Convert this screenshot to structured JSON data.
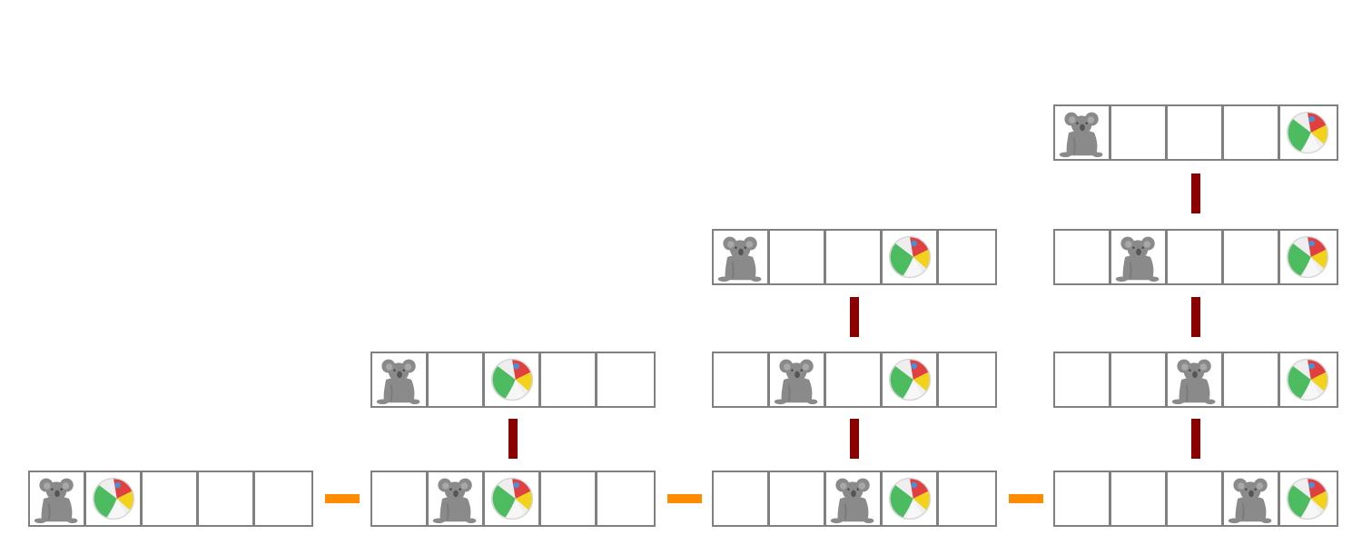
{
  "colors": {
    "cell_border": "#808080",
    "horizontal_connector": "#ff8c00",
    "vertical_connector": "#8b0000",
    "koala": "#8a8a8a",
    "ball_green": "#4dbb5f",
    "ball_red": "#e04040",
    "ball_yellow": "#f2d21b",
    "ball_blue": "#4a90d9"
  },
  "icons": {
    "koala": "koala-icon",
    "ball": "beach-ball-icon"
  },
  "diagram": {
    "cells_per_strip": 5,
    "columns": [
      {
        "rows": [
          {
            "koala": 0,
            "ball": 1
          }
        ]
      },
      {
        "rows": [
          {
            "koala": 1,
            "ball": 2
          },
          {
            "koala": 0,
            "ball": 2
          }
        ]
      },
      {
        "rows": [
          {
            "koala": 2,
            "ball": 3
          },
          {
            "koala": 1,
            "ball": 3
          },
          {
            "koala": 0,
            "ball": 3
          }
        ]
      },
      {
        "rows": [
          {
            "koala": 3,
            "ball": 4
          },
          {
            "koala": 2,
            "ball": 4
          },
          {
            "koala": 1,
            "ball": 4
          },
          {
            "koala": 0,
            "ball": 4
          }
        ]
      }
    ]
  }
}
